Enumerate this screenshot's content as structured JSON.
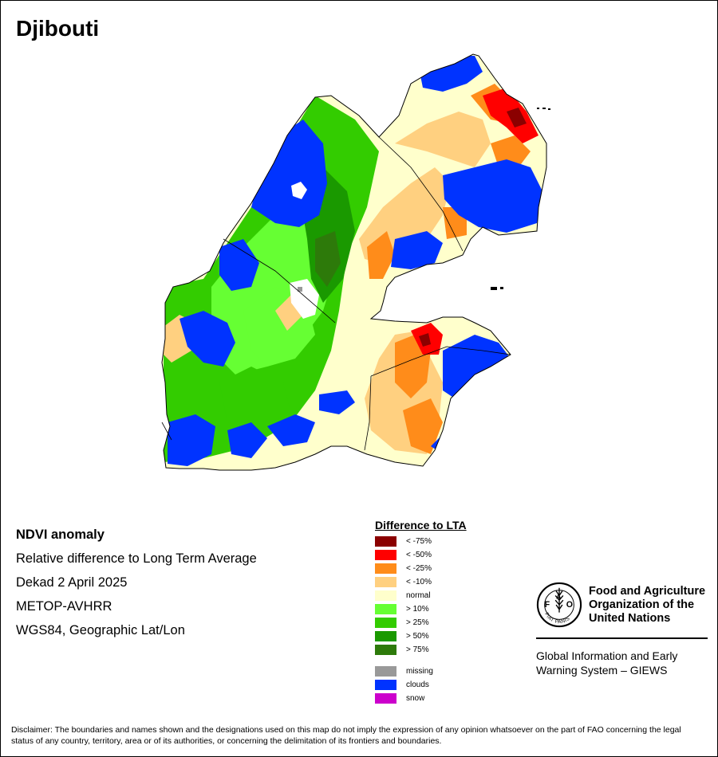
{
  "title": "Djibouti",
  "info": {
    "product": "NDVI anomaly",
    "description": "Relative difference to Long Term Average",
    "period": "Dekad 2 April 2025",
    "sensor": "METOP-AVHRR",
    "projection": "WGS84, Geographic Lat/Lon"
  },
  "legend": {
    "title": "Difference to LTA",
    "classes": [
      {
        "label": "< -75%",
        "color": "#8b0000"
      },
      {
        "label": "< -50%",
        "color": "#ff0000"
      },
      {
        "label": "< -25%",
        "color": "#ff8c1a"
      },
      {
        "label": "< -10%",
        "color": "#ffd080"
      },
      {
        "label": "normal",
        "color": "#ffffcc"
      },
      {
        "label": "> 10%",
        "color": "#66ff33"
      },
      {
        "label": "> 25%",
        "color": "#33cc00"
      },
      {
        "label": "> 50%",
        "color": "#1a9900"
      },
      {
        "label": "> 75%",
        "color": "#2d7a0a"
      }
    ],
    "other": [
      {
        "label": "missing",
        "color": "#999999"
      },
      {
        "label": "clouds",
        "color": "#0033ff"
      },
      {
        "label": "snow",
        "color": "#cc00cc"
      }
    ]
  },
  "logo": {
    "emblem_text": "FIAT PANIS",
    "org_line1": "Food and Agriculture",
    "org_line2": "Organization of the",
    "org_line3": "United Nations",
    "giews_line1": "Global Information and Early",
    "giews_line2": "Warning System – GIEWS"
  },
  "disclaimer": "Disclaimer: The boundaries and names shown and the designations used on this map do not imply the expression of any opinion whatsoever on the part of FAO concerning the legal status of any country, territory, area or of its authorities, or concerning the delimitation of its frontiers and boundaries."
}
